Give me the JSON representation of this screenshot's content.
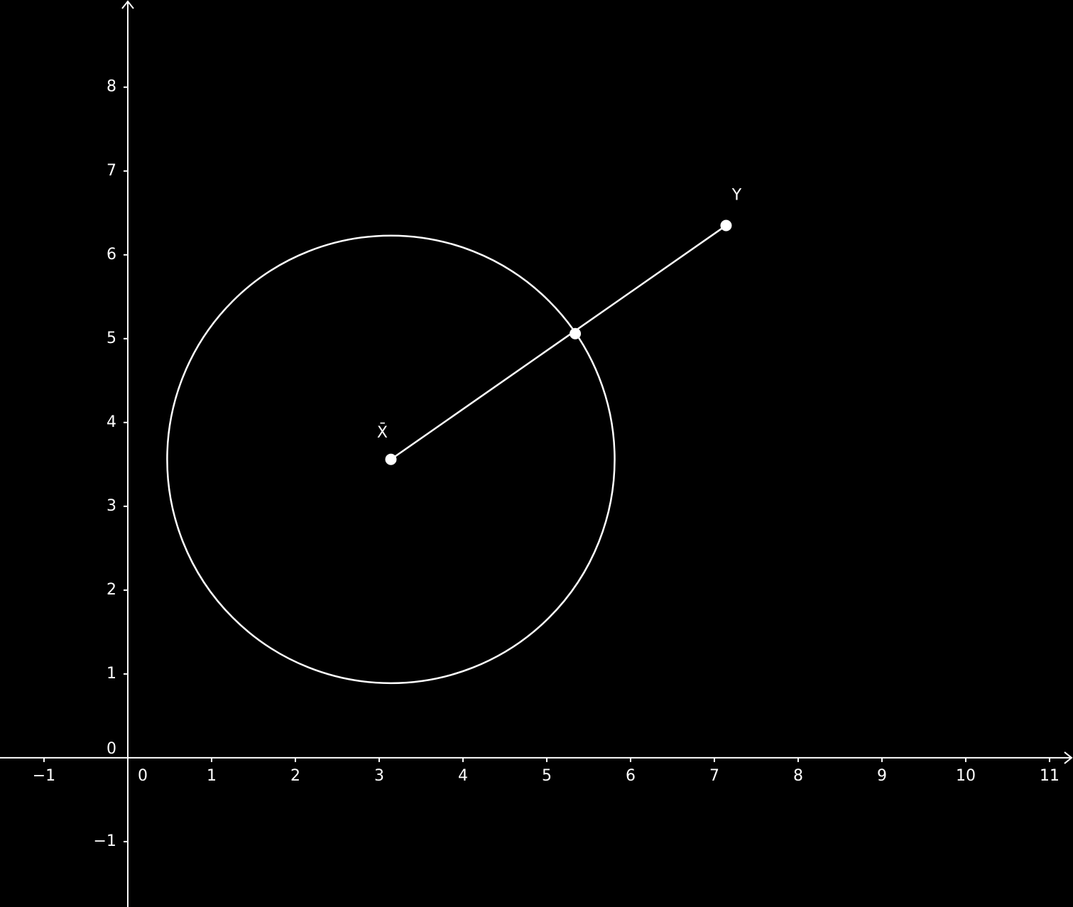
{
  "chart_data": {
    "type": "geometry",
    "xlim": [
      -1.525,
      11.28
    ],
    "ylim": [
      -1.78,
      9.04
    ],
    "xticks": [
      {
        "value": -1,
        "label": "−1"
      },
      0,
      1,
      2,
      3,
      4,
      5,
      6,
      7,
      8,
      9,
      10,
      11
    ],
    "yticks": [
      {
        "value": -1,
        "label": "−1"
      },
      0,
      1,
      2,
      3,
      4,
      5,
      6,
      7,
      8
    ],
    "points": {
      "x": [
        3.14,
        5.34,
        7.14
      ],
      "y": [
        3.56,
        5.06,
        6.35
      ],
      "labels": [
        "X̄",
        null,
        "Y"
      ]
    },
    "circle": {
      "cx": 3.14,
      "cy": 3.56,
      "r": 2.67
    },
    "color": "#ffffff",
    "background": "#000000"
  }
}
